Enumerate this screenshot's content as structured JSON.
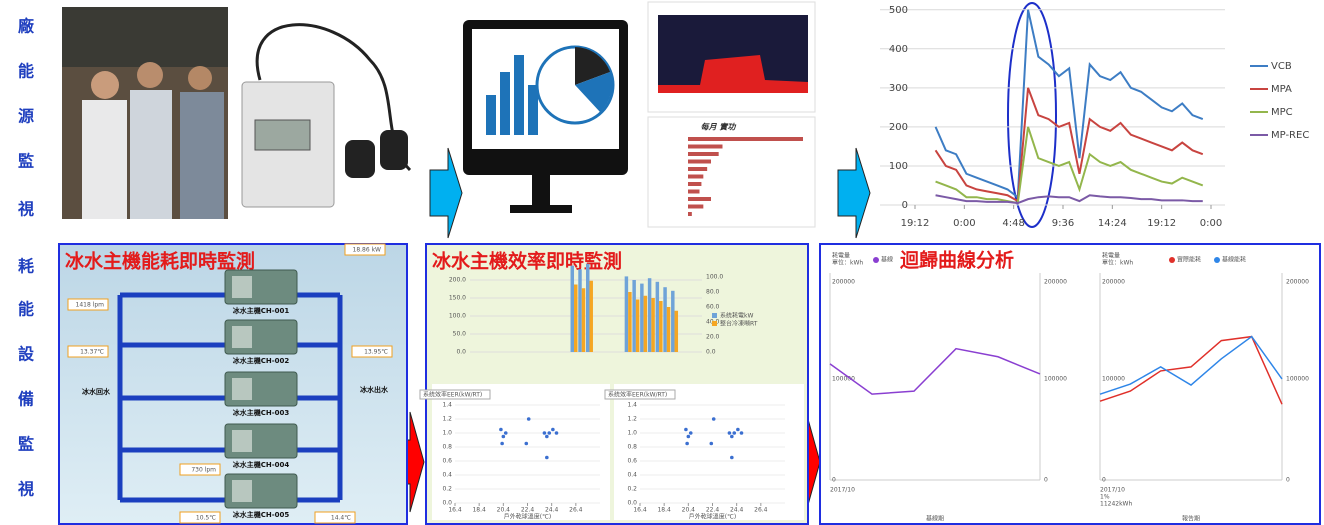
{
  "side_title": [
    "廠",
    "能",
    "源",
    "監",
    "視",
    "耗",
    "能",
    "設",
    "備",
    "監",
    "視"
  ],
  "usage_chart": {
    "type": "line",
    "x": [
      2,
      3,
      4,
      5,
      6,
      7,
      8,
      9,
      10,
      11,
      12,
      13,
      14,
      15,
      16,
      17,
      18,
      19,
      20,
      21,
      22,
      23,
      24,
      25,
      26,
      27,
      28
    ],
    "xlim": [
      0,
      28.8
    ],
    "xticks": [
      {
        "value": 0,
        "label": "19:12"
      },
      {
        "value": 4.8,
        "label": "0:00"
      },
      {
        "value": 9.6,
        "label": "4:48"
      },
      {
        "value": 14.4,
        "label": "9:36"
      },
      {
        "value": 19.2,
        "label": "14:24"
      },
      {
        "value": 24,
        "label": "19:12"
      },
      {
        "value": 28.8,
        "label": "0:00"
      }
    ],
    "ylim": [
      0,
      525
    ],
    "yticks": [
      0,
      100,
      200,
      300,
      400,
      500
    ],
    "grid": true,
    "series": [
      {
        "name": "VCB",
        "color": "#3d7dc4",
        "values": [
          200,
          140,
          130,
          80,
          70,
          60,
          50,
          40,
          20,
          500,
          380,
          360,
          330,
          350,
          120,
          360,
          330,
          320,
          340,
          300,
          290,
          270,
          250,
          240,
          260,
          230,
          220
        ]
      },
      {
        "name": "MPA",
        "color": "#c84440",
        "values": [
          140,
          100,
          90,
          50,
          40,
          35,
          30,
          25,
          10,
          300,
          230,
          220,
          200,
          210,
          80,
          220,
          200,
          190,
          210,
          180,
          170,
          160,
          150,
          140,
          160,
          140,
          130
        ]
      },
      {
        "name": "MPC",
        "color": "#93b64c",
        "values": [
          60,
          50,
          40,
          20,
          20,
          15,
          15,
          10,
          5,
          200,
          120,
          110,
          100,
          110,
          40,
          130,
          110,
          100,
          110,
          90,
          80,
          70,
          60,
          55,
          70,
          60,
          50
        ]
      },
      {
        "name": "MP-REC",
        "color": "#7b5aa6",
        "values": [
          25,
          20,
          15,
          10,
          10,
          8,
          8,
          8,
          5,
          15,
          20,
          22,
          20,
          20,
          10,
          25,
          22,
          20,
          20,
          18,
          15,
          15,
          12,
          12,
          12,
          10,
          10
        ]
      }
    ]
  },
  "monthly_chart": {
    "title": "每月 實功",
    "values": [
      3000,
      900,
      800,
      600,
      500,
      400,
      350,
      300,
      600,
      400,
      100
    ]
  },
  "monitor_panel": {
    "title": "冰水主機能耗即時監測",
    "chillers": [
      "冰水主機CH-001",
      "冰水主機CH-002",
      "冰水主機CH-003",
      "冰水主機CH-004",
      "冰水主機CH-005"
    ],
    "return_label": "冰水回水",
    "supply_label": "冰水出水",
    "readings": [
      "18.86 kW",
      "1418 lpm",
      "13.37℃",
      "13.95℃",
      "730 lpm",
      "10.5℃",
      "14.4℃"
    ]
  },
  "efficiency_panel": {
    "title": "冰水主機效率即時監測",
    "bar_chart": {
      "type": "bar",
      "ylim": [
        0,
        250
      ],
      "y2lim": [
        0,
        120
      ],
      "yticks": [
        {
          "value": 0,
          "label": "0.0"
        },
        {
          "value": 50,
          "label": "50.0"
        },
        {
          "value": 100,
          "label": "100.0"
        },
        {
          "value": 150,
          "label": "150.0"
        },
        {
          "value": 200,
          "label": "200.0"
        }
      ],
      "y2ticks": [
        {
          "value": 0,
          "label": "0.0"
        },
        {
          "value": 20,
          "label": "20.0"
        },
        {
          "value": 40,
          "label": "40.0"
        },
        {
          "value": 60,
          "label": "60.0"
        },
        {
          "value": 80,
          "label": "80.0"
        },
        {
          "value": 100,
          "label": "100.0"
        }
      ],
      "series": [
        {
          "name": "系統耗電kW",
          "color": "#6fa3d8",
          "values": [
            0,
            0,
            0,
            0,
            0,
            0,
            0,
            0,
            0,
            0,
            0,
            0,
            0,
            240,
            230,
            245,
            0,
            0,
            0,
            0,
            210,
            200,
            190,
            205,
            195,
            180,
            170,
            0,
            0,
            0
          ]
        },
        {
          "name": "整台冷凍噸RT",
          "color": "#f5a623",
          "axis": "y2",
          "values": [
            0,
            0,
            0,
            0,
            0,
            0,
            0,
            0,
            0,
            0,
            0,
            0,
            0,
            90,
            85,
            95,
            0,
            0,
            0,
            0,
            80,
            70,
            75,
            72,
            68,
            60,
            55,
            0,
            0,
            0
          ]
        }
      ]
    },
    "scatter": {
      "type": "scatter",
      "selector": "系統效率EER(kW/RT)",
      "xlabel": "戶外乾球溫度(℃)",
      "x": [
        20.2,
        20.4,
        20.6,
        20.3,
        22.5,
        22.3,
        23.8,
        24.0,
        24.2,
        24.5,
        24.8,
        24.0
      ],
      "values": [
        1.05,
        0.95,
        1.0,
        0.85,
        1.2,
        0.85,
        1.0,
        0.95,
        1.0,
        1.05,
        1.0,
        0.65
      ],
      "xlim": [
        16.4,
        28.4
      ],
      "xticks": [
        16.4,
        18.4,
        20.4,
        22.4,
        24.4,
        26.4
      ],
      "ylim": [
        0,
        1.4
      ],
      "yticks": [
        {
          "value": 0,
          "label": "0.0"
        },
        {
          "value": 0.2,
          "label": "0.2"
        },
        {
          "value": 0.4,
          "label": "0.4"
        },
        {
          "value": 0.6,
          "label": "0.6"
        },
        {
          "value": 0.8,
          "label": "0.8"
        },
        {
          "value": 1,
          "label": "1.0"
        },
        {
          "value": 1.2,
          "label": "1.2"
        },
        {
          "value": 1.4,
          "label": "1.4"
        }
      ]
    }
  },
  "regression_panel": {
    "title": "迴歸曲線分析",
    "unit_label": [
      "耗電量",
      "單位：kWh"
    ],
    "ylim": [
      0,
      200000
    ],
    "yticks": [
      0,
      100000,
      200000
    ],
    "baseline": {
      "date": "2017/10",
      "caption": "基線期",
      "series": [
        {
          "name": "基線",
          "color": "#8a3fd1",
          "values": [
            115000,
            85000,
            88000,
            130000,
            122000,
            105000
          ]
        }
      ]
    },
    "report": {
      "date": "2017/10",
      "notes": [
        "1%",
        "11242kWh"
      ],
      "caption": "報告期",
      "series": [
        {
          "name": "實際能耗",
          "color": "#e0302a",
          "values": [
            78000,
            88000,
            108000,
            112000,
            138000,
            142000,
            75000
          ]
        },
        {
          "name": "基線能耗",
          "color": "#2f86e8",
          "values": [
            85000,
            95000,
            112000,
            94000,
            120000,
            142000,
            100000
          ]
        }
      ]
    }
  }
}
